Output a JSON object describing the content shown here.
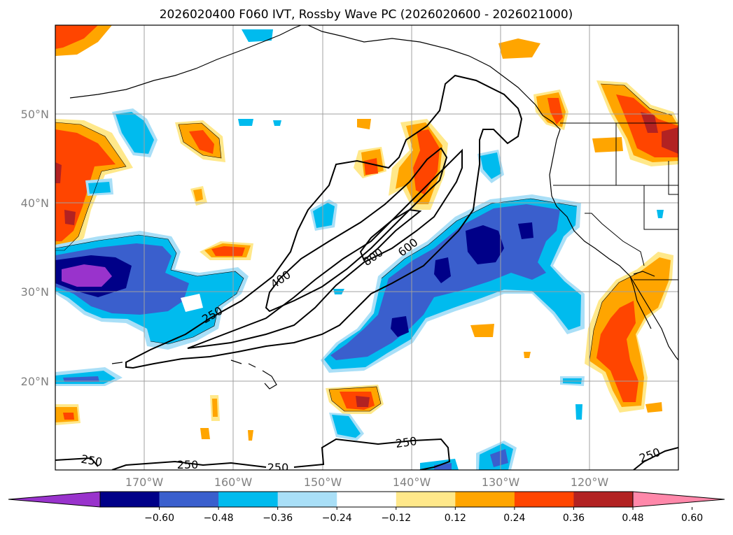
{
  "title": "2026020400 F060 IVT, Rossby Wave PC (2026020600 - 2026021000)",
  "lat_labels": [
    "50°N",
    "40°N",
    "30°N",
    "20°N"
  ],
  "lon_labels": [
    "170°W",
    "160°W",
    "150°W",
    "140°W",
    "130°W",
    "120°W"
  ],
  "ivt_contour_labels": [
    "250",
    "400",
    "600",
    "800",
    "250",
    "250",
    "250",
    "250",
    "250"
  ],
  "colorbar": {
    "ticks": [
      "−0.60",
      "−0.48",
      "−0.36",
      "−0.24",
      "−0.12",
      "0.12",
      "0.24",
      "0.36",
      "0.48",
      "0.60"
    ],
    "colors": [
      "#9933cc",
      "#000088",
      "#3a5fcd",
      "#00bbee",
      "#a9dff7",
      "#ffffff",
      "#ffe88a",
      "#ffa500",
      "#ff4500",
      "#b22222",
      "#ff88aa"
    ]
  },
  "map_extent": {
    "lon": [
      -180,
      -110
    ],
    "lat": [
      10,
      60
    ]
  },
  "gridlines": true
}
